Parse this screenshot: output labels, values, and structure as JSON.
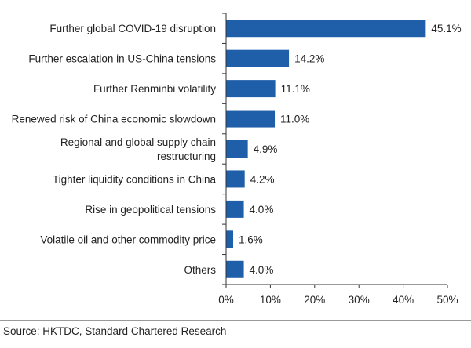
{
  "chart_data": {
    "type": "bar",
    "orientation": "horizontal",
    "categories": [
      [
        "Further global COVID-19 disruption"
      ],
      [
        "Further escalation in US-China tensions"
      ],
      [
        "Further Renminbi volatility"
      ],
      [
        "Renewed risk of China economic slowdown"
      ],
      [
        "Regional and global supply chain",
        "restructuring"
      ],
      [
        "Tighter liquidity conditions in China"
      ],
      [
        "Rise in geopolitical tensions"
      ],
      [
        "Volatile oil and other commodity price"
      ],
      [
        "Others"
      ]
    ],
    "values": [
      45.1,
      14.2,
      11.1,
      11.0,
      4.9,
      4.2,
      4.0,
      1.6,
      4.0
    ],
    "value_labels": [
      "45.1%",
      "14.2%",
      "11.1%",
      "11.0%",
      "4.9%",
      "4.2%",
      "4.0%",
      "1.6%",
      "4.0%"
    ],
    "xlim": [
      0,
      50
    ],
    "xticks": [
      "0%",
      "10%",
      "20%",
      "30%",
      "40%",
      "50%"
    ],
    "bar_color": "#1f5ea8",
    "grid": false,
    "title": "",
    "xlabel": "",
    "ylabel": ""
  },
  "source": "Source: HKTDC, Standard Chartered Research"
}
